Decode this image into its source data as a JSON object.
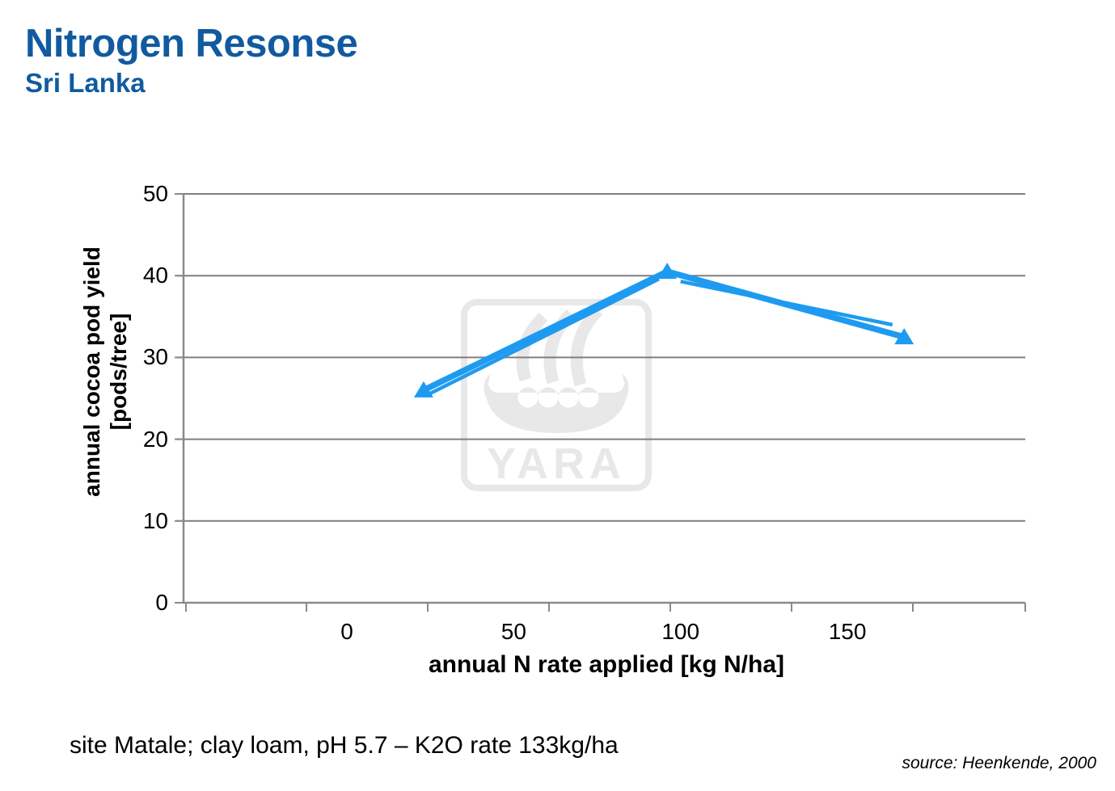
{
  "header": {
    "title": "Nitrogen Resonse",
    "subtitle": "Sri Lanka"
  },
  "watermark": {
    "text": "YARA"
  },
  "footer": {
    "site_note": "site Matale; clay loam, pH 5.7 – K2O rate 133kg/ha",
    "source": "source: Heenkende, 2000"
  },
  "colors": {
    "title_blue": "#115AA0",
    "line_blue": "#1E9BF0",
    "axis_gray": "#8A8A8A",
    "grid_gray": "#7F7F7F",
    "watermark_gray": "#E8E8E8"
  },
  "chart_data": {
    "type": "line",
    "title": "",
    "xlabel": "annual N rate applied [kg N/ha]",
    "ylabel": "annual cocoa pod yield [pods/tree]",
    "ylabel_lines": [
      "annual cocoa pod yield",
      "[pods/tree]"
    ],
    "xticks": [
      0,
      50,
      100,
      150
    ],
    "yticks": [
      0,
      10,
      20,
      30,
      40,
      50
    ],
    "xlim": [
      -49,
      204
    ],
    "ylim": [
      0,
      50
    ],
    "grid": "horizontal",
    "legend": "none",
    "marker": "triangle-up",
    "series": [
      {
        "x": [
          23,
          96,
          167
        ],
        "y": [
          26,
          40.5,
          32.5
        ]
      }
    ],
    "duplicate_line_segments": [
      [
        23.5,
        25.3,
        93.5,
        39.6
      ],
      [
        100,
        39.3,
        163.5,
        34.0
      ]
    ]
  }
}
